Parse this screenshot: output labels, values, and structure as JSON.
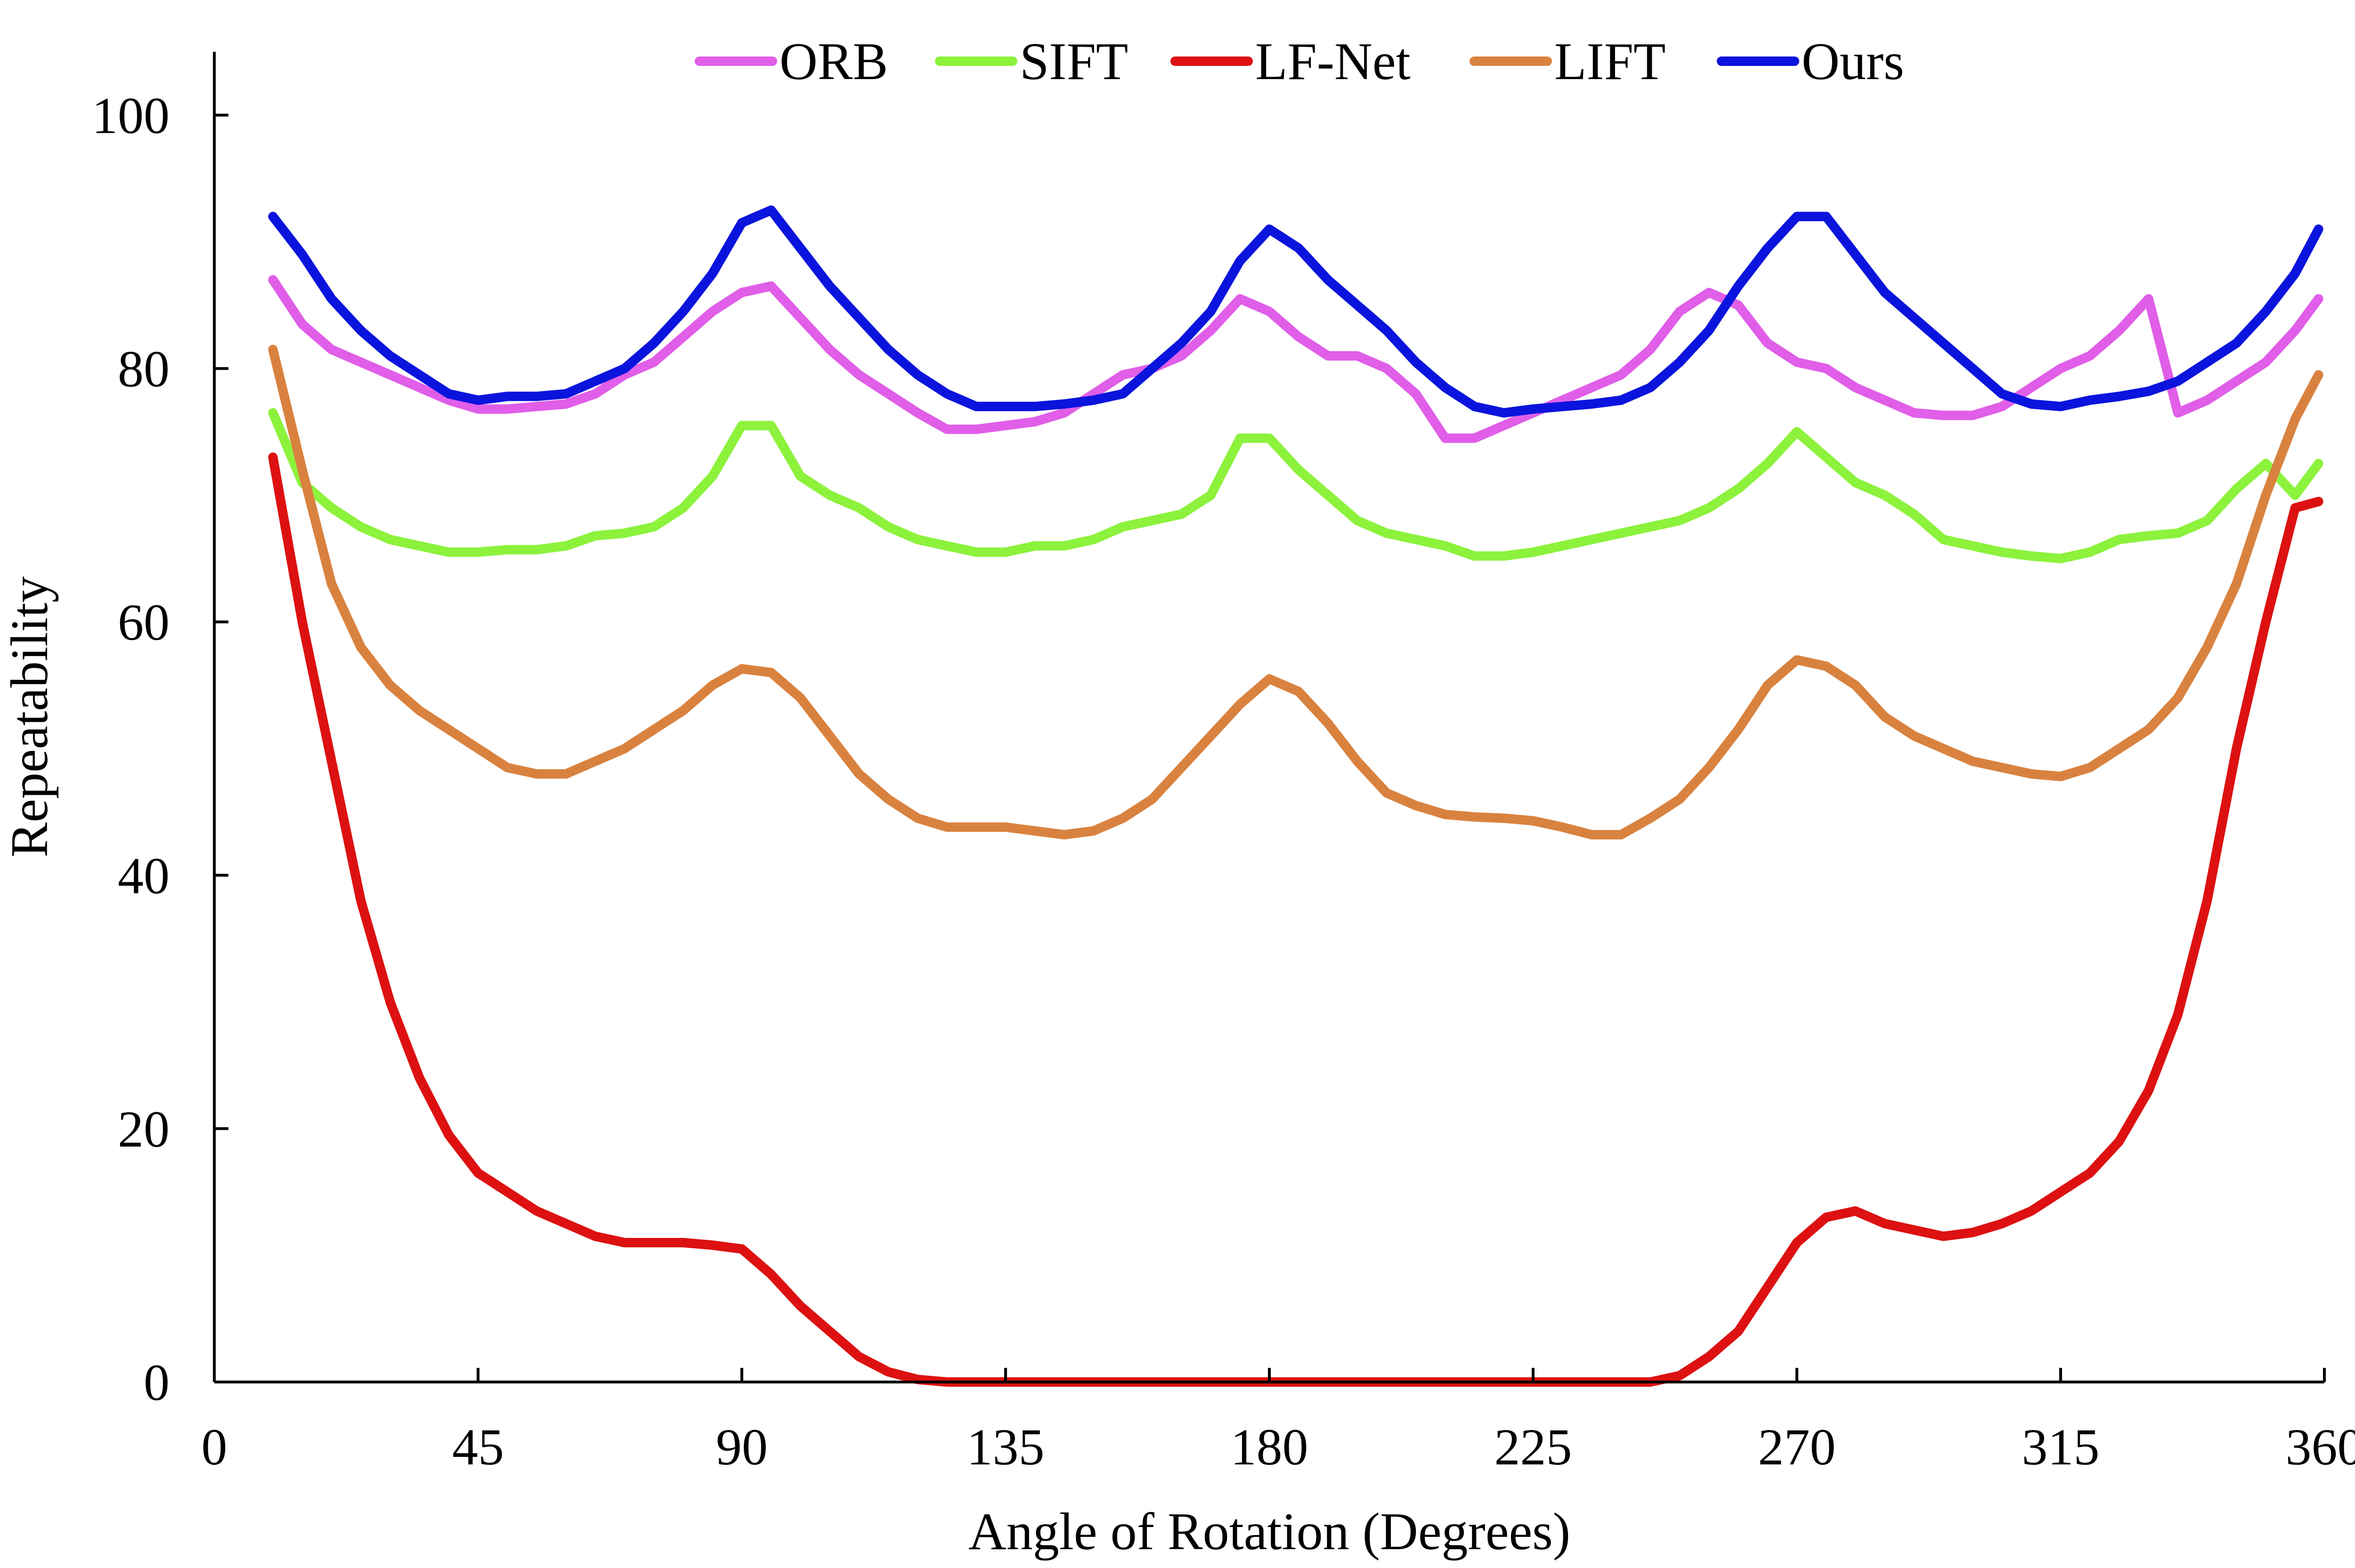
{
  "chart_data": {
    "type": "line",
    "title": "",
    "xlabel": "Angle of Rotation (Degrees)",
    "ylabel": "Repeatability",
    "xlim": [
      0,
      360
    ],
    "ylim": [
      0,
      105
    ],
    "xticks": [
      0,
      45,
      90,
      135,
      180,
      225,
      270,
      315,
      360
    ],
    "yticks": [
      0,
      20,
      40,
      60,
      80,
      100
    ],
    "grid": false,
    "legend": "top",
    "x": [
      10,
      15,
      20,
      25,
      30,
      35,
      40,
      45,
      50,
      55,
      60,
      65,
      70,
      75,
      80,
      85,
      90,
      95,
      100,
      105,
      110,
      115,
      120,
      125,
      130,
      135,
      140,
      145,
      150,
      155,
      160,
      165,
      170,
      175,
      180,
      185,
      190,
      195,
      200,
      205,
      210,
      215,
      220,
      225,
      230,
      235,
      240,
      245,
      250,
      255,
      260,
      265,
      270,
      275,
      280,
      285,
      290,
      295,
      300,
      305,
      310,
      315,
      320,
      325,
      330,
      335,
      340,
      345,
      350,
      355,
      359
    ],
    "series": [
      {
        "name": "ORB",
        "color": "#e05ee8",
        "values": [
          87,
          83.5,
          81.5,
          80.5,
          79.5,
          78.5,
          77.5,
          76.8,
          76.8,
          77,
          77.2,
          78,
          79.5,
          80.5,
          82.5,
          84.5,
          86,
          86.5,
          84,
          81.5,
          79.5,
          78,
          76.5,
          75.2,
          75.2,
          75.5,
          75.8,
          76.5,
          78,
          79.5,
          80,
          81,
          83,
          85.5,
          84.5,
          82.5,
          81,
          81,
          80,
          78,
          74.5,
          74.5,
          75.5,
          76.5,
          77.5,
          78.5,
          79.5,
          81.5,
          84.5,
          86,
          85,
          82,
          80.5,
          80,
          78.5,
          77.5,
          76.5,
          76.3,
          76.3,
          77,
          78.5,
          80,
          81,
          83,
          85.5,
          76.5,
          77.5,
          79,
          80.5,
          83,
          85.5
        ]
      },
      {
        "name": "SIFT",
        "color": "#8cf23c",
        "values": [
          76.5,
          71,
          69,
          67.5,
          66.5,
          66,
          65.5,
          65.5,
          65.7,
          65.7,
          66,
          66.8,
          67,
          67.5,
          69,
          71.5,
          75.5,
          75.5,
          71.5,
          70,
          69,
          67.5,
          66.5,
          66,
          65.5,
          65.5,
          66,
          66,
          66.5,
          67.5,
          68,
          68.5,
          70,
          74.5,
          74.5,
          72,
          70,
          68,
          67,
          66.5,
          66,
          65.2,
          65.2,
          65.5,
          66,
          66.5,
          67,
          67.5,
          68,
          69,
          70.5,
          72.5,
          75,
          73,
          71,
          70,
          68.5,
          66.5,
          66,
          65.5,
          65.2,
          65,
          65.5,
          66.5,
          66.8,
          67,
          68,
          70.5,
          72.5,
          70,
          72.5
        ]
      },
      {
        "name": "LF-Net",
        "color": "#dd1111",
        "values": [
          73,
          60,
          49,
          38,
          30,
          24,
          19.5,
          16.5,
          15,
          13.5,
          12.5,
          11.5,
          11,
          11,
          11,
          10.8,
          10.5,
          8.5,
          6,
          4,
          2,
          0.8,
          0.2,
          0,
          0,
          0,
          0,
          0,
          0,
          0,
          0,
          0,
          0,
          0,
          0,
          0,
          0,
          0,
          0,
          0,
          0,
          0,
          0,
          0,
          0,
          0,
          0,
          0,
          0.5,
          2,
          4,
          7.5,
          11,
          13,
          13.5,
          12.5,
          12,
          11.5,
          11.8,
          12.5,
          13.5,
          15,
          16.5,
          19,
          23,
          29,
          38,
          50,
          60,
          69,
          69.5
        ]
      },
      {
        "name": "LIFT",
        "color": "#d9823f",
        "values": [
          81.5,
          72,
          63,
          58,
          55,
          53,
          51.5,
          50,
          48.5,
          48,
          48,
          49,
          50,
          51.5,
          53,
          55,
          56.3,
          56,
          54,
          51,
          48,
          46,
          44.5,
          43.8,
          43.8,
          43.8,
          43.5,
          43.2,
          43.5,
          44.5,
          46,
          48.5,
          51,
          53.5,
          55.5,
          54.5,
          52,
          49,
          46.5,
          45.5,
          44.8,
          44.6,
          44.5,
          44.3,
          43.8,
          43.2,
          43.2,
          44.5,
          46,
          48.5,
          51.5,
          55,
          57,
          56.5,
          55,
          52.5,
          51,
          50,
          49,
          48.5,
          48,
          47.8,
          48.5,
          50,
          51.5,
          54,
          58,
          63,
          70,
          76,
          79.5
        ]
      },
      {
        "name": "Ours",
        "color": "#0a14dd",
        "values": [
          92,
          89,
          85.5,
          83,
          81,
          79.5,
          78,
          77.5,
          77.8,
          77.8,
          78,
          79,
          80,
          82,
          84.5,
          87.5,
          91.5,
          92.5,
          89.5,
          86.5,
          84,
          81.5,
          79.5,
          78,
          77,
          77,
          77,
          77.2,
          77.5,
          78,
          80,
          82,
          84.5,
          88.5,
          91,
          89.5,
          87,
          85,
          83,
          80.5,
          78.5,
          77,
          76.5,
          76.8,
          77,
          77.2,
          77.5,
          78.5,
          80.5,
          83,
          86.5,
          89.5,
          92,
          92,
          89,
          86,
          84,
          82,
          80,
          78,
          77.2,
          77,
          77.5,
          77.8,
          78.2,
          79,
          80.5,
          82,
          84.5,
          87.5,
          91
        ]
      }
    ]
  }
}
